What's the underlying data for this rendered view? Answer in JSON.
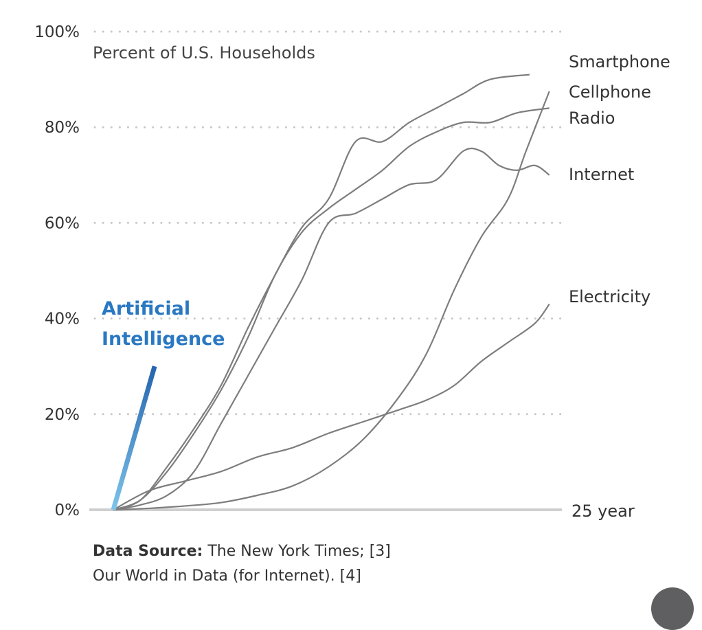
{
  "chart_data": {
    "type": "line",
    "title": "Percent of U.S. Households",
    "xlabel": "25 year",
    "ylabel": "",
    "xlim": [
      0,
      25
    ],
    "ylim": [
      0,
      100
    ],
    "grid": true,
    "y_ticks": [
      "0%",
      "20%",
      "40%",
      "60%",
      "80%",
      "100%"
    ],
    "y_tick_values": [
      0,
      20,
      40,
      60,
      80,
      100
    ],
    "x_end_label": "25 year",
    "series": [
      {
        "name": "Smartphone",
        "x": [
          0,
          1.5,
          3,
          4.5,
          6,
          7.5,
          9,
          10.5,
          12,
          13.5,
          15,
          16.5,
          18,
          19.5,
          21,
          23.2
        ],
        "values": [
          0,
          2,
          9,
          17,
          26,
          38,
          49,
          59,
          65,
          77,
          77,
          81,
          84,
          87,
          90,
          91
        ]
      },
      {
        "name": "Cellphone",
        "x": [
          0,
          2,
          4,
          6,
          8,
          10,
          12,
          14,
          16,
          17.5,
          19,
          20.5,
          22,
          23,
          24.3
        ],
        "values": [
          0,
          0.3,
          0.8,
          1.5,
          3,
          5,
          9,
          15,
          24,
          33,
          46,
          57,
          65,
          75,
          87.5
        ]
      },
      {
        "name": "Radio",
        "x": [
          0,
          1.5,
          3,
          4.5,
          6,
          7.5,
          9,
          10.5,
          12,
          13.5,
          15,
          16.5,
          18,
          19.5,
          21,
          22.5,
          24.3
        ],
        "values": [
          0,
          2,
          8,
          16,
          25,
          36,
          49,
          58,
          63,
          67,
          71,
          76,
          79,
          81,
          81,
          83,
          84
        ]
      },
      {
        "name": "Internet",
        "x": [
          0,
          1.5,
          3,
          4.5,
          6,
          7.5,
          9,
          10.5,
          12,
          13.5,
          15,
          16.5,
          18,
          19.5,
          20.5,
          21.5,
          22.5,
          23.5,
          24.3
        ],
        "values": [
          0,
          1,
          3,
          8,
          18,
          28,
          38,
          48,
          60,
          62,
          65,
          68,
          69,
          75,
          75,
          72,
          71,
          72,
          70
        ]
      },
      {
        "name": "Electricity",
        "x": [
          0,
          2,
          4,
          6,
          8,
          10,
          12,
          14,
          16,
          17.5,
          19,
          20.5,
          22,
          23.5,
          24.3
        ],
        "values": [
          0,
          4,
          6,
          8,
          11,
          13,
          16,
          18.5,
          21,
          23,
          26,
          31,
          35,
          39,
          43
        ]
      },
      {
        "name": "Artificial Intelligence",
        "x": [
          0,
          2.3
        ],
        "values": [
          0,
          30
        ],
        "color": "#2a78c2"
      }
    ],
    "annotations": [
      "Artificial Intelligence"
    ]
  },
  "source": {
    "label": "Data Source:",
    "line1": " The New York Times; [3]",
    "line2": "Our World in Data (for Internet). [4]"
  }
}
